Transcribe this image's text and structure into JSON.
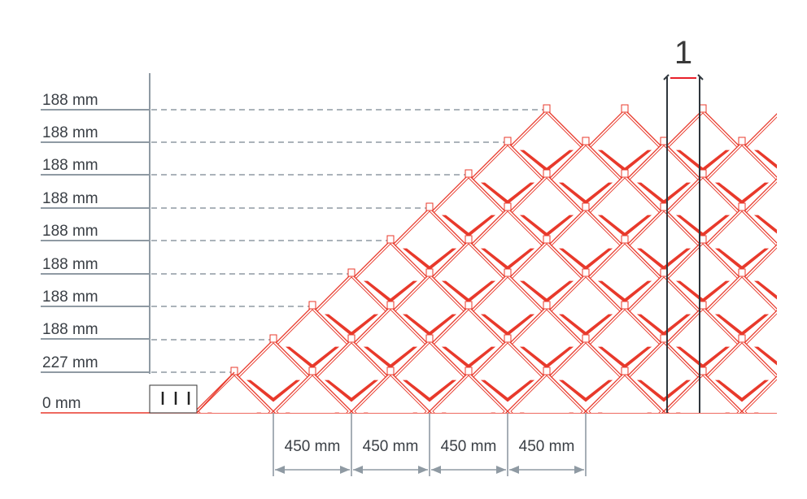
{
  "colors": {
    "tile": "#e8392b",
    "dimension": "#8f9aa3",
    "dark": "#2f363c",
    "marker": "#e8202a"
  },
  "left_labels": [
    "188 mm",
    "188 mm",
    "188 mm",
    "188 mm",
    "188 mm",
    "188 mm",
    "188 mm",
    "188 mm",
    "227 mm",
    "0 mm"
  ],
  "bottom_labels": [
    "450 mm",
    "450 mm",
    "450 mm",
    "450 mm"
  ],
  "callout": "1"
}
